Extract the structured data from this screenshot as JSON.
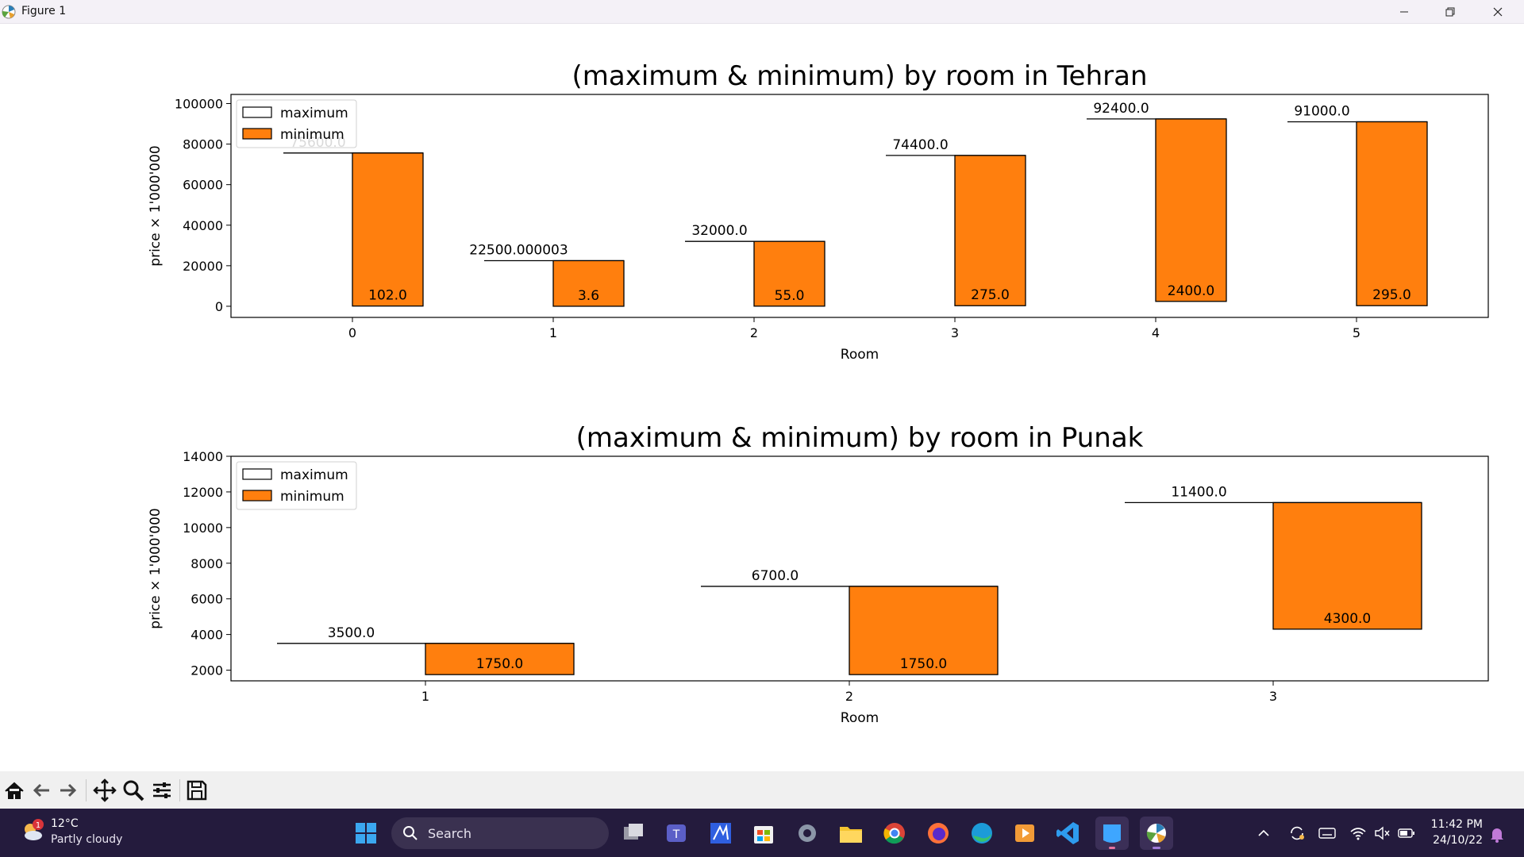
{
  "window": {
    "title": "Figure 1"
  },
  "legend": {
    "maximum_label": "maximum",
    "minimum_label": "minimum"
  },
  "colors": {
    "minimum_fill": "#ff7f0e",
    "maximum_fill": "#ffffff",
    "edge": "#000000"
  },
  "chart_data": [
    {
      "type": "bar",
      "title": "(maximum & minimum) by room in Tehran",
      "xlabel": "Room",
      "ylabel": "price × 1'000'000",
      "categories": [
        "0",
        "1",
        "2",
        "3",
        "4",
        "5"
      ],
      "ylim": [
        -5500,
        104500
      ],
      "yticks": [
        "0",
        "20000",
        "40000",
        "60000",
        "80000",
        "100000"
      ],
      "legend_position": "upper-left",
      "series": [
        {
          "name": "maximum",
          "values": [
            75600,
            22500.000003,
            32000,
            74400,
            92400,
            91000
          ],
          "labels": [
            "75600.0",
            "22500.000003",
            "32000.0",
            "74400.0",
            "92400.0",
            "91000.0"
          ]
        },
        {
          "name": "minimum",
          "values": [
            102,
            3.6,
            55,
            275,
            2400,
            295
          ],
          "labels": [
            "102.0",
            "3.6",
            "55.0",
            "275.0",
            "2400.0",
            "295.0"
          ]
        }
      ]
    },
    {
      "type": "bar",
      "title": "(maximum & minimum) by room in Punak",
      "xlabel": "Room",
      "ylabel": "price × 1'000'000",
      "categories": [
        "1",
        "2",
        "3"
      ],
      "ylim": [
        1400,
        14000
      ],
      "yticks": [
        "2000",
        "4000",
        "6000",
        "8000",
        "10000",
        "12000",
        "14000"
      ],
      "legend_position": "upper-left",
      "series": [
        {
          "name": "maximum",
          "values": [
            3500,
            6700,
            11400
          ],
          "labels": [
            "3500.0",
            "6700.0",
            "11400.0"
          ]
        },
        {
          "name": "minimum",
          "values": [
            1750,
            1750,
            4300
          ],
          "labels": [
            "1750.0",
            "1750.0",
            "4300.0"
          ]
        }
      ]
    }
  ],
  "toolbar": {
    "buttons": [
      "home-icon",
      "back-icon",
      "forward-icon",
      "pan-icon",
      "zoom-icon",
      "configure-subplots-icon",
      "save-icon"
    ]
  },
  "taskbar": {
    "weather_temp": "12°C",
    "weather_desc": "Partly cloudy",
    "weather_badge": "1",
    "search_label": "Search",
    "time": "11:42 PM",
    "date": "24/10/22"
  }
}
